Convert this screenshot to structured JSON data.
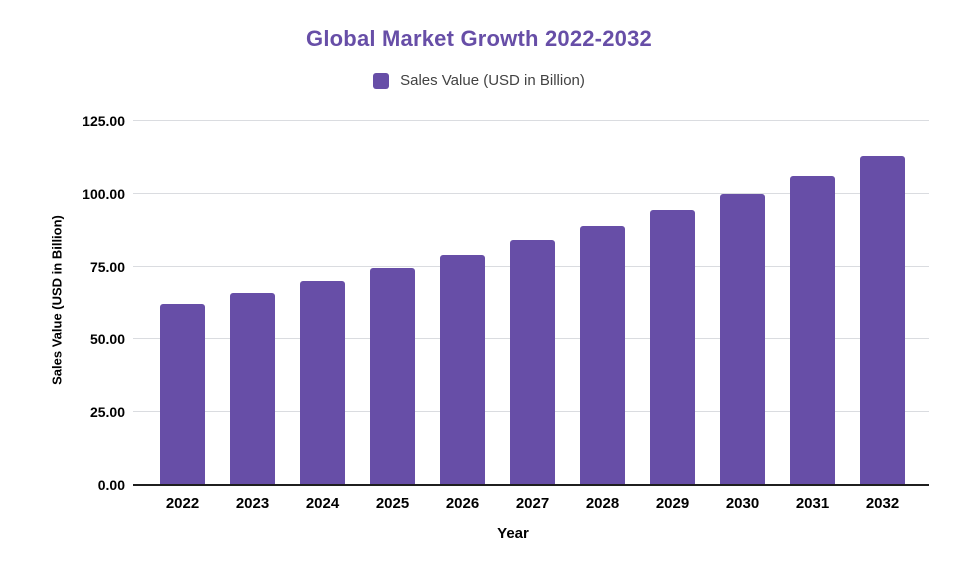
{
  "chart": {
    "title": "Global Market Growth 2022-2032",
    "legend_label": "Sales Value (USD in Billion)",
    "x_axis_title": "Year",
    "y_axis_title": "Sales Value (USD in Billion)"
  },
  "chart_data": {
    "type": "bar",
    "title": "Global Market Growth 2022-2032",
    "xlabel": "Year",
    "ylabel": "Sales Value (USD in Billion)",
    "categories": [
      "2022",
      "2023",
      "2024",
      "2025",
      "2026",
      "2027",
      "2028",
      "2029",
      "2030",
      "2031",
      "2032"
    ],
    "series": [
      {
        "name": "Sales Value (USD in Billion)",
        "values": [
          62,
          66,
          70,
          74.5,
          79,
          84,
          89,
          94.5,
          100,
          106,
          113
        ]
      }
    ],
    "ylim": [
      0,
      125
    ],
    "y_ticks": [
      {
        "value": 125,
        "label": "125.00"
      },
      {
        "value": 100,
        "label": "100.00"
      },
      {
        "value": 75,
        "label": "75.00"
      },
      {
        "value": 50,
        "label": "50.00"
      },
      {
        "value": 25,
        "label": "25.00"
      },
      {
        "value": 0,
        "label": "0.00"
      }
    ],
    "grid": true,
    "legend_position": "top"
  },
  "style": {
    "bar_color": "#674EA7",
    "title_color": "#674EA7",
    "legend_swatch_color": "#674EA7",
    "grid_color": "#dadce0",
    "axis_line_color": "#1f1f1f",
    "background": "#ffffff"
  }
}
